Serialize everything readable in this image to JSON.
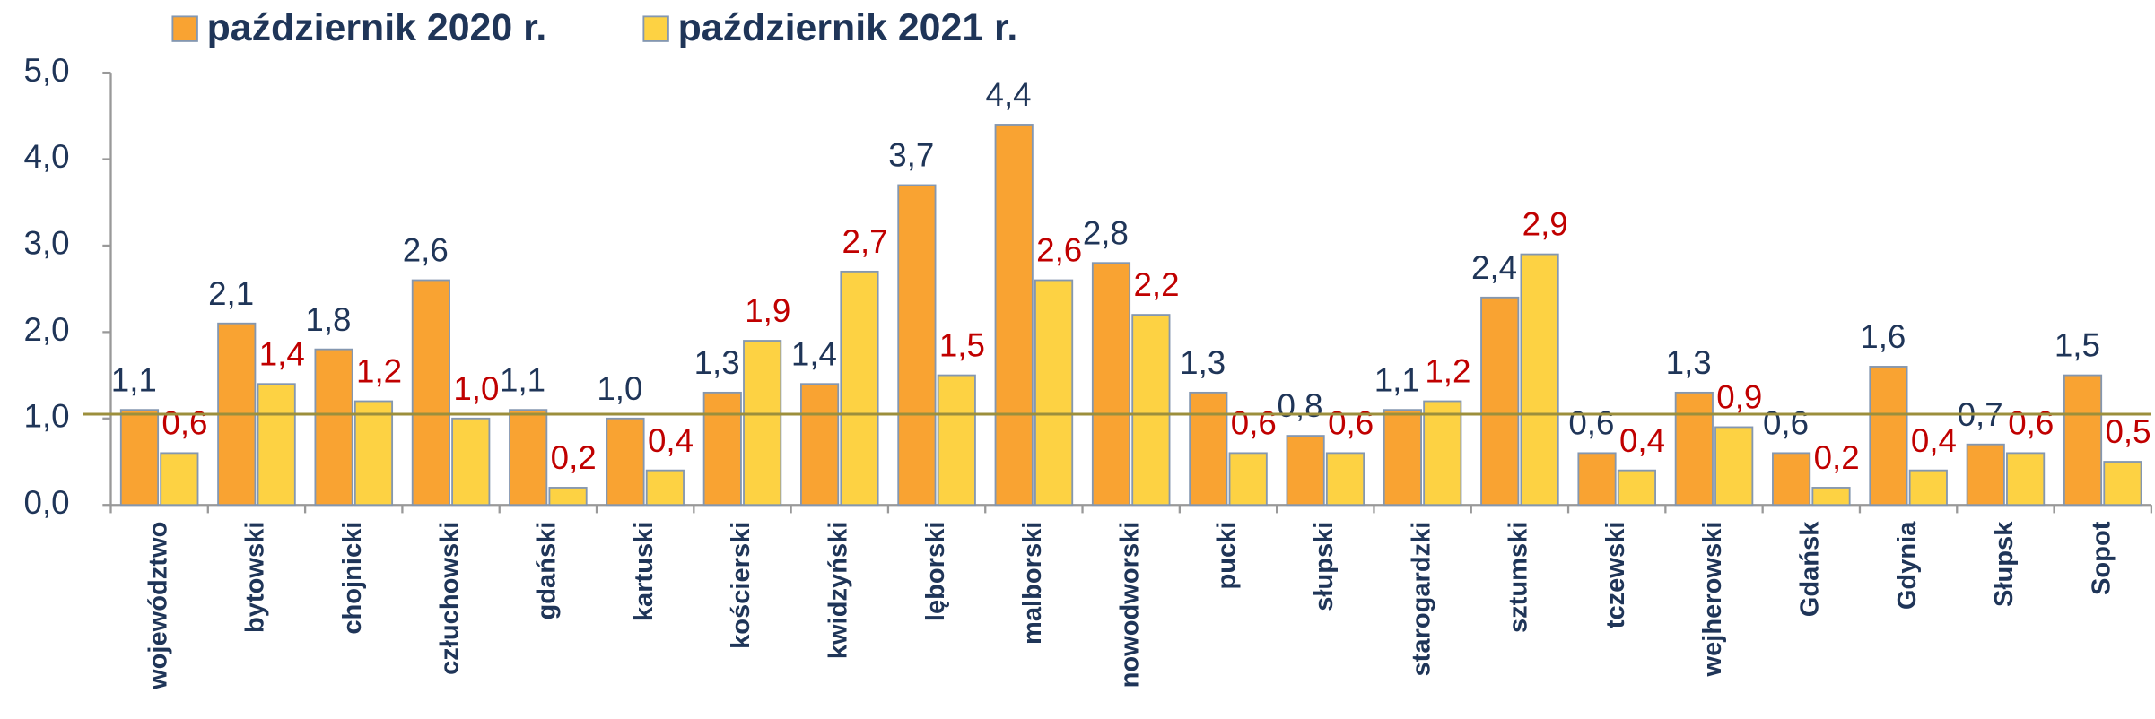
{
  "chart_data": {
    "type": "bar",
    "categories": [
      "województwo",
      "bytowski",
      "chojnicki",
      "człuchowski",
      "gdański",
      "kartuski",
      "kościerski",
      "kwidzyński",
      "lęborski",
      "malborski",
      "nowodworski",
      "pucki",
      "słupski",
      "starogardzki",
      "sztumski",
      "tczewski",
      "wejherowski",
      "Gdańsk",
      "Gdynia",
      "Słupsk",
      "Sopot"
    ],
    "series": [
      {
        "name": "październik 2020 r.",
        "color": "#f9a332",
        "label_color": "#1f3558",
        "values": [
          1.1,
          2.1,
          1.8,
          2.6,
          1.1,
          1.0,
          1.3,
          1.4,
          3.7,
          4.4,
          2.8,
          1.3,
          0.8,
          1.1,
          2.4,
          0.6,
          1.3,
          0.6,
          1.6,
          0.7,
          1.5
        ],
        "value_labels": [
          "1,1",
          "2,1",
          "1,8",
          "2,6",
          "1,1",
          "1,0",
          "1,3",
          "1,4",
          "3,7",
          "4,4",
          "2,8",
          "1,3",
          "0,8",
          "1,1",
          "2,4",
          "0,6",
          "1,3",
          "0,6",
          "1,6",
          "0,7",
          "1,5"
        ]
      },
      {
        "name": "październik 2021 r.",
        "color": "#fdd243",
        "label_color": "#c00000",
        "values": [
          0.6,
          1.4,
          1.2,
          1.0,
          0.2,
          0.4,
          1.9,
          2.7,
          1.5,
          2.6,
          2.2,
          0.6,
          0.6,
          1.2,
          2.9,
          0.4,
          0.9,
          0.2,
          0.4,
          0.6,
          0.5
        ],
        "value_labels": [
          "0,6",
          "1,4",
          "1,2",
          "1,0",
          "0,2",
          "0,4",
          "1,9",
          "2,7",
          "1,5",
          "2,6",
          "2,2",
          "0,6",
          "0,6",
          "1,2",
          "2,9",
          "0,4",
          "0,9",
          "0,2",
          "0,4",
          "0,6",
          "0,5"
        ]
      }
    ],
    "ylim": [
      0,
      5
    ],
    "yticks": [
      {
        "value": 0,
        "label": "0,0"
      },
      {
        "value": 1,
        "label": "1,0"
      },
      {
        "value": 2,
        "label": "2,0"
      },
      {
        "value": 3,
        "label": "3,0"
      },
      {
        "value": 4,
        "label": "4,0"
      },
      {
        "value": 5,
        "label": "5,0"
      }
    ],
    "reference_line": 1.05,
    "legend": "top"
  }
}
